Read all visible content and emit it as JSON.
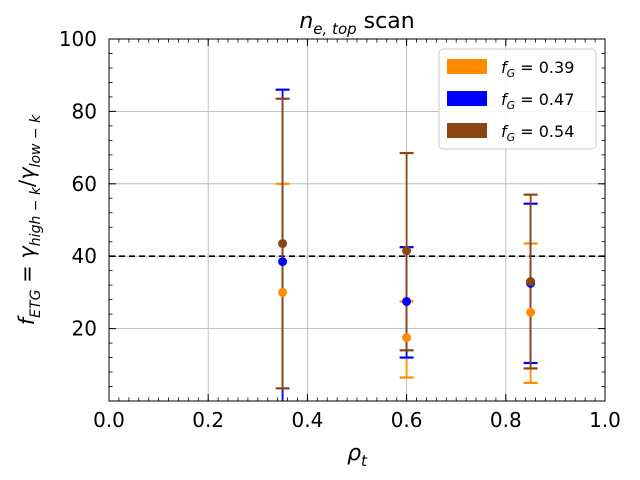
{
  "chart_data": {
    "type": "scatter",
    "title": {
      "var": "n",
      "sub": "e, top",
      "text": " scan"
    },
    "xlabel": {
      "var": "ρ",
      "sub": "t"
    },
    "ylabel": {
      "text": "f_ETG = γ_high-k / γ_low-k"
    },
    "xlim": [
      0.0,
      1.0
    ],
    "ylim": [
      0,
      100
    ],
    "xticks": [
      0.0,
      0.2,
      0.4,
      0.6,
      0.8,
      1.0
    ],
    "xtick_labels": [
      "0.0",
      "0.2",
      "0.4",
      "0.6",
      "0.8",
      "1.0"
    ],
    "yticks": [
      20,
      40,
      60,
      80,
      100
    ],
    "ytick_labels": [
      "20",
      "40",
      "60",
      "80",
      "100"
    ],
    "grid": true,
    "reference_line": {
      "y": 40,
      "style": "dashed",
      "color": "#000000"
    },
    "legend_position": "top-right",
    "series": [
      {
        "name": "f_G = 0.39",
        "legend_var": "f",
        "legend_sub": "G",
        "legend_val": " = 0.39",
        "color": "#ff8c00",
        "x": [
          0.35,
          0.6,
          0.85
        ],
        "y": [
          30,
          17.5,
          24.5
        ],
        "err_low": [
          null,
          6.5,
          5
        ],
        "err_high": [
          60,
          27.5,
          43.5
        ]
      },
      {
        "name": "f_G = 0.47",
        "legend_var": "f",
        "legend_sub": "G",
        "legend_val": " = 0.47",
        "color": "#0000ff",
        "x": [
          0.35,
          0.6,
          0.85
        ],
        "y": [
          38.5,
          27.5,
          32.5
        ],
        "err_low": [
          null,
          12,
          10.5
        ],
        "err_high": [
          86,
          42.5,
          54.5
        ]
      },
      {
        "name": "f_G = 0.54",
        "legend_var": "f",
        "legend_sub": "G",
        "legend_val": " = 0.54",
        "color": "#8b4513",
        "x": [
          0.35,
          0.6,
          0.85
        ],
        "y": [
          43.5,
          41.5,
          33
        ],
        "err_low": [
          3.5,
          14,
          9
        ],
        "err_high": [
          83.5,
          68.5,
          57
        ]
      }
    ]
  }
}
